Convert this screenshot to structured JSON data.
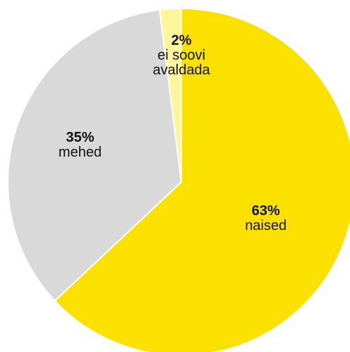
{
  "chart_data": {
    "type": "pie",
    "title": "",
    "start_angle_deg": 0,
    "direction": "clockwise",
    "slices": [
      {
        "label": "naised",
        "percent_label": "63%",
        "value": 63,
        "color": "#FAE100"
      },
      {
        "label": "mehed",
        "percent_label": "35%",
        "value": 35,
        "color": "#D9D9D9"
      },
      {
        "label": "ei soovi avaldada",
        "percent_label": "2%",
        "value": 2,
        "color": "#FFF59A",
        "label_lines": [
          "ei soovi",
          "avaldada"
        ]
      }
    ],
    "separator_color": "#FFFFFF"
  }
}
